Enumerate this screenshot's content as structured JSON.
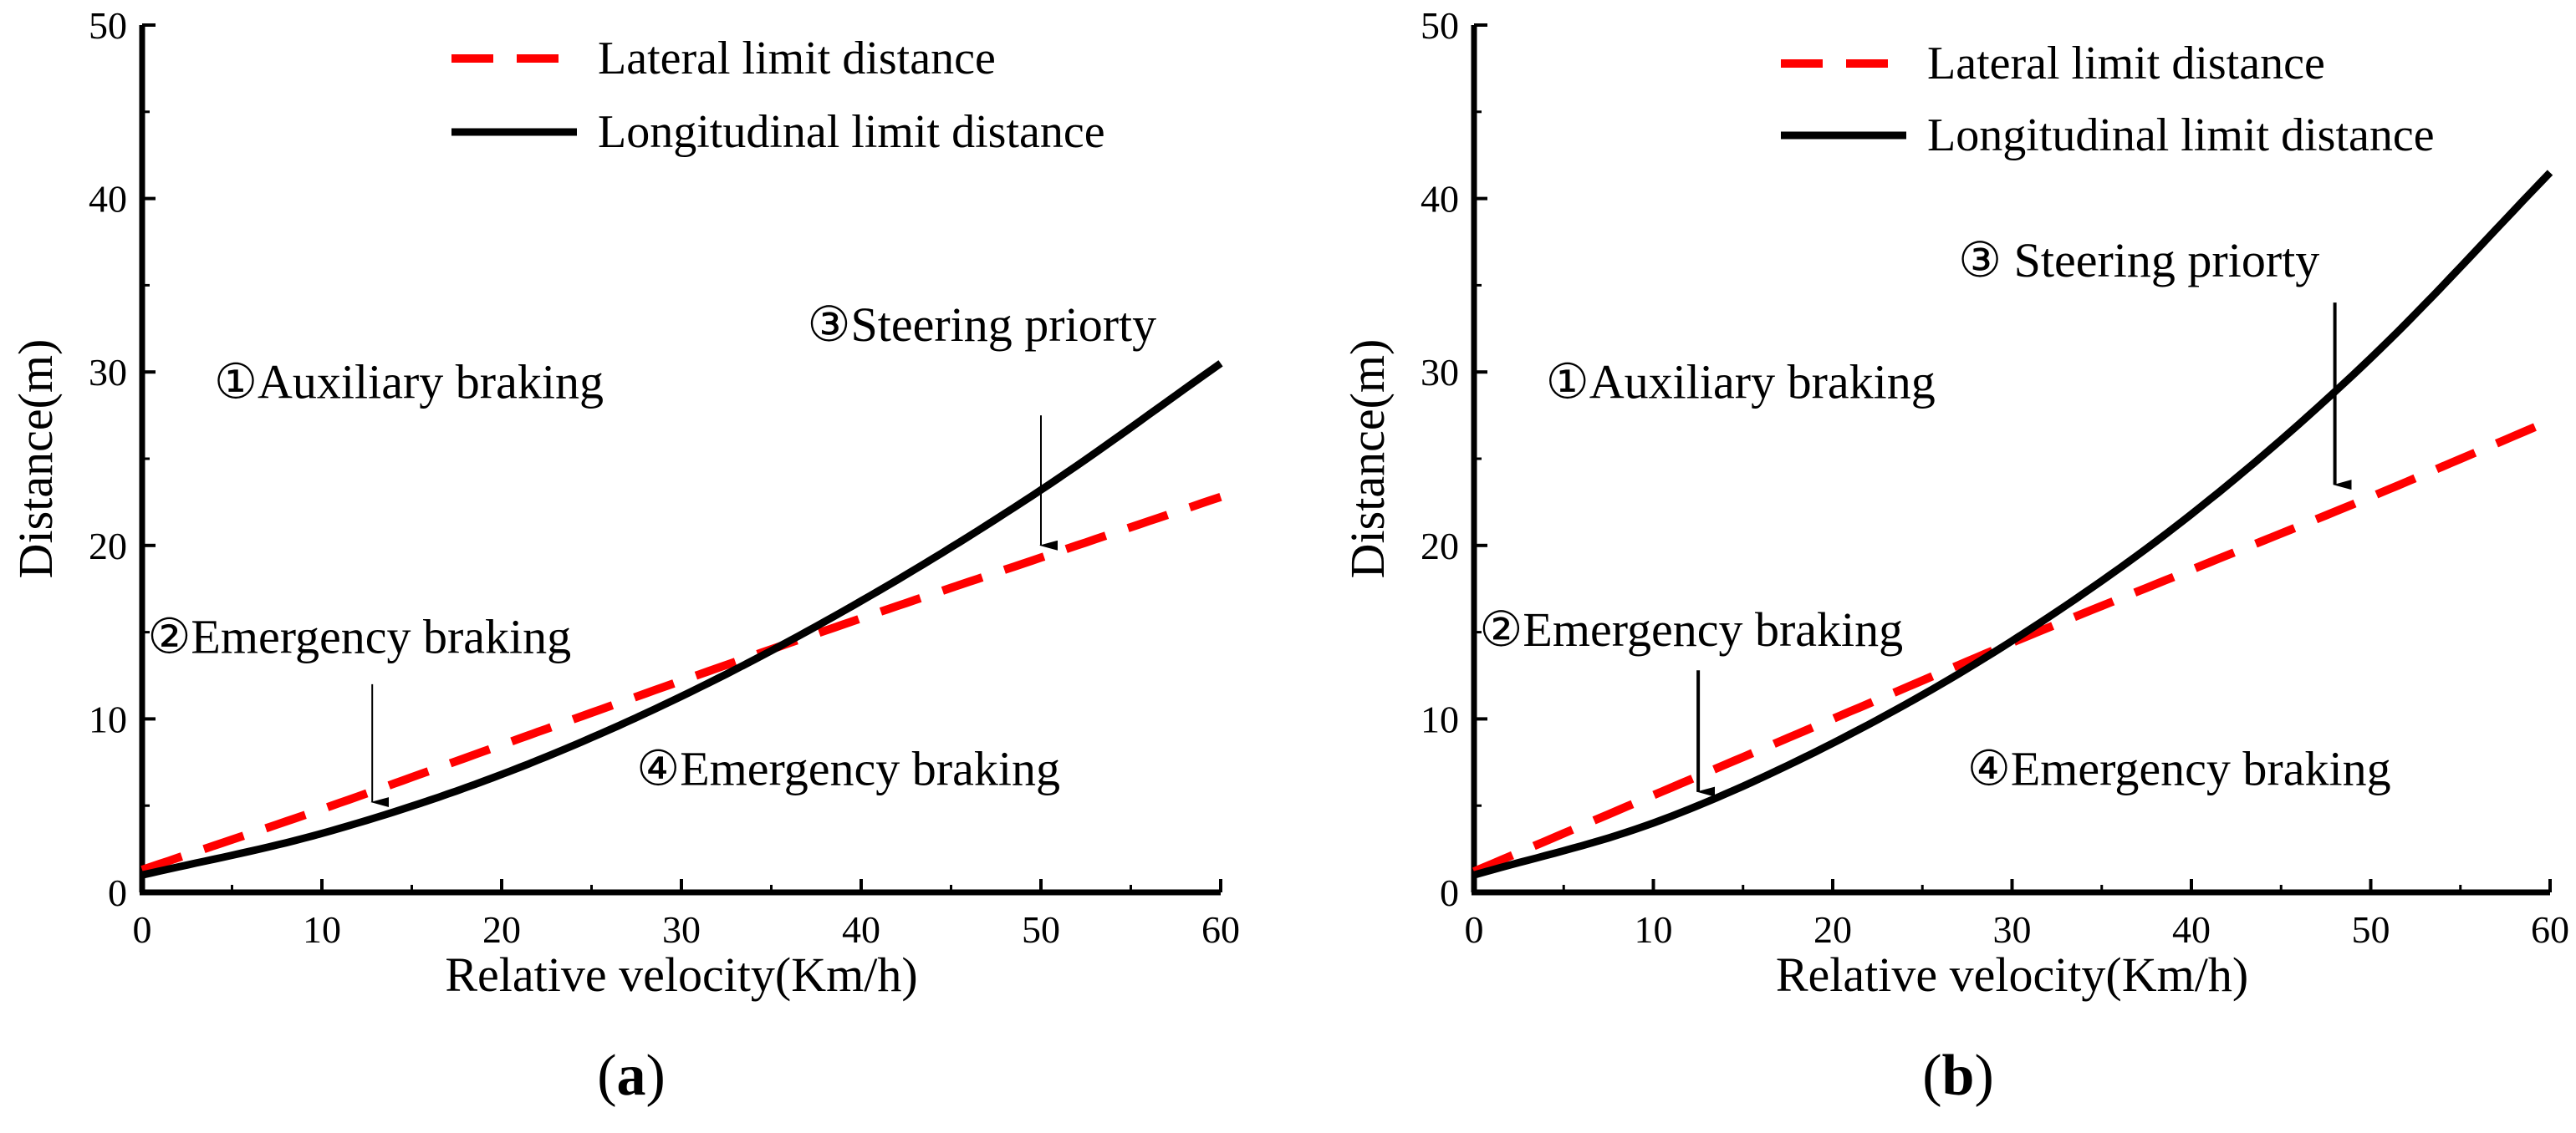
{
  "chart_data": [
    {
      "panel": "a",
      "type": "line",
      "caption": "(a)",
      "caption_parts": [
        "(",
        "a",
        ")"
      ],
      "xlabel": "Relative velocity(Km/h)",
      "ylabel": "Distance(m)",
      "xlim": [
        0,
        60
      ],
      "ylim": [
        0,
        50
      ],
      "xticks": [
        0,
        10,
        20,
        30,
        40,
        50,
        60
      ],
      "yticks": [
        0,
        10,
        20,
        30,
        40,
        50
      ],
      "grid": false,
      "legend_position": "top-right",
      "series": [
        {
          "name": "Lateral limit distance",
          "style": "dashed",
          "color": "#ff0000",
          "x": [
            0,
            10,
            20,
            30,
            40,
            50,
            60
          ],
          "y": [
            1.3,
            4.8,
            8.5,
            12.2,
            15.8,
            19.3,
            22.8
          ]
        },
        {
          "name": "Longitudinal limit distance",
          "style": "solid",
          "color": "#000000",
          "x": [
            0,
            10,
            20,
            30,
            40,
            50,
            60
          ],
          "y": [
            1.0,
            3.4,
            6.8,
            11.3,
            16.8,
            23.2,
            30.5
          ]
        }
      ],
      "annotations": [
        {
          "text": "①Auxiliary braking",
          "x": 4,
          "y": 28.5
        },
        {
          "text": "②Emergency braking",
          "x": 0.3,
          "y": 13.8,
          "arrow_from": [
            12.8,
            12.0
          ],
          "arrow_to": [
            12.8,
            5.2
          ]
        },
        {
          "text": "③Steering priorty",
          "x": 37,
          "y": 31.8,
          "arrow_from": [
            50,
            27.5
          ],
          "arrow_to": [
            50,
            20.0
          ]
        },
        {
          "text": "④Emergency braking",
          "x": 27.5,
          "y": 6.2
        }
      ]
    },
    {
      "panel": "b",
      "type": "line",
      "caption": "(b)",
      "caption_parts": [
        "(",
        "b",
        ")"
      ],
      "xlabel": "Relative velocity(Km/h)",
      "ylabel": "Distance(m)",
      "xlim": [
        0,
        60
      ],
      "ylim": [
        0,
        50
      ],
      "xticks": [
        0,
        10,
        20,
        30,
        40,
        50,
        60
      ],
      "yticks": [
        0,
        10,
        20,
        30,
        40,
        50
      ],
      "grid": false,
      "legend_position": "top-right",
      "series": [
        {
          "name": "Lateral limit distance",
          "style": "dashed",
          "color": "#ff0000",
          "x": [
            0,
            10,
            20,
            30,
            40,
            50,
            60
          ],
          "y": [
            1.2,
            5.6,
            10.0,
            14.4,
            18.6,
            22.8,
            27.2
          ]
        },
        {
          "name": "Longitudinal limit distance",
          "style": "solid",
          "color": "#000000",
          "x": [
            0,
            10,
            20,
            30,
            40,
            50,
            60
          ],
          "y": [
            1.0,
            4.0,
            8.6,
            14.5,
            21.8,
            30.8,
            41.5
          ]
        }
      ],
      "annotations": [
        {
          "text": "①Auxiliary braking",
          "x": 4,
          "y": 28.5
        },
        {
          "text": "②Emergency braking",
          "x": 0.3,
          "y": 14.2,
          "arrow_from": [
            12.5,
            12.8
          ],
          "arrow_to": [
            12.5,
            5.8
          ]
        },
        {
          "text": "③ Steering priorty",
          "x": 27,
          "y": 35.5,
          "arrow_from": [
            48,
            34.0
          ],
          "arrow_to": [
            48,
            23.5
          ]
        },
        {
          "text": "④Emergency braking",
          "x": 27.5,
          "y": 6.2
        }
      ]
    }
  ]
}
